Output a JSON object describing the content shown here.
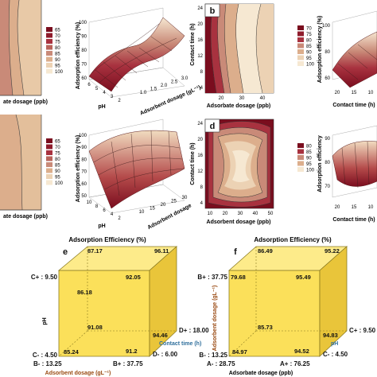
{
  "colors": {
    "dark_red": "#7a0d1e",
    "red": "#a8323f",
    "mid": "#c98a78",
    "tan": "#dcae8c",
    "light": "#ecd2b4",
    "pale": "#f6e8d2",
    "cube_front": "#fbe05a",
    "cube_top": "#fdeb8a",
    "cube_side": "#e9c53a",
    "blue_label": "#2f6f9c",
    "brown_label": "#9a4a12"
  },
  "panels": {
    "a_legend": [
      "65",
      "70",
      "75",
      "80",
      "85",
      "90",
      "95",
      "100"
    ],
    "a_surface": {
      "zlabel": "Adsorption efficiency (%)",
      "zticks": [
        "60",
        "70",
        "80",
        "90",
        "100"
      ],
      "xlabel": "Adsorbent dosage (gL⁻¹)",
      "xticks": [
        "1.0",
        "1.5",
        "2.0",
        "2.5",
        "3.0"
      ],
      "ylabel": "pH",
      "yticks": [
        "6",
        "5",
        "4",
        "3",
        "2"
      ]
    },
    "a_contour_xlabel": "ate dosage (ppb)",
    "b_badge": "b",
    "b_contour": {
      "ylabel": "Contact time (h)",
      "xlabel": "Adsorbate dosage (ppb)",
      "yticks": [
        "24",
        "20",
        "16",
        "12",
        "8",
        "4"
      ],
      "xticks": [
        "20",
        "30",
        "40"
      ]
    },
    "b_legend": [
      "70",
      "75",
      "80",
      "85",
      "90",
      "95",
      "100"
    ],
    "b_surface": {
      "zlabel": "Adsorption efficiency (%)",
      "zticks": [
        "60",
        "80",
        "100"
      ],
      "xlabel": "Contact time (h)",
      "xticks": [
        "20",
        "15",
        "10"
      ]
    },
    "c_legend": [
      "65",
      "70",
      "75",
      "80",
      "85",
      "90",
      "95",
      "100"
    ],
    "c_surface": {
      "zlabel": "Adsorption efficiency (%)",
      "zticks": [
        "50",
        "60",
        "70",
        "80",
        "90",
        "100"
      ],
      "ylabel": "pH",
      "yticks": [
        "10",
        "8",
        "6",
        "4",
        "2"
      ],
      "xlabel": "Adsorbent dosage",
      "xticks": [
        "10",
        "15",
        "20",
        "25",
        "30"
      ]
    },
    "c_contour_xlabel": "ate dosage (ppb)",
    "d_badge": "d",
    "d_contour": {
      "ylabel": "Contact time (h)",
      "xlabel": "Adsorbent dosage (ppb)",
      "yticks": [
        "24",
        "20",
        "16",
        "12",
        "8",
        "4"
      ],
      "xticks": [
        "10",
        "20",
        "30",
        "40",
        "50"
      ]
    },
    "d_legend": [
      "80",
      "85",
      "90",
      "95",
      "100"
    ],
    "d_surface": {
      "zlabel": "Adsorption efficiency",
      "zticks": [
        "70",
        "80",
        "90"
      ],
      "xlabel": "Contact time (h)",
      "xticks": [
        "20",
        "15",
        "10"
      ]
    }
  },
  "chart_data": [
    {
      "type": "cube",
      "badge": "e",
      "title": "Adsorption Efficiency (%)",
      "axes": {
        "vertical": "pH",
        "depth": "Contact time (h)",
        "horizontal": "Adsorbent dosage (gL⁻¹)"
      },
      "levels": {
        "vertical": {
          "minus": "C- : 4.50",
          "plus": "C+ : 9.50"
        },
        "horizontal": {
          "minus": "B- : 13.25",
          "plus": "B+ : 37.75"
        },
        "depth": {
          "minus": "D- : 6.00",
          "plus": "D+ : 18.00"
        }
      },
      "corners": {
        "front_bottom_left": 85.24,
        "front_bottom_right": 91.2,
        "front_top_left": 86.18,
        "front_top_right": 92.05,
        "back_bottom_left": 91.08,
        "back_bottom_right": 94.46,
        "back_top_left": 87.17,
        "back_top_right": 96.11
      }
    },
    {
      "type": "cube",
      "badge": "f",
      "title": "Adsorption Efficiency (%)",
      "axes": {
        "vertical": "Adsorbent dosage (gL⁻¹)",
        "depth": "pH",
        "horizontal": "Adsorbate dosage (ppb)"
      },
      "levels": {
        "vertical": {
          "minus": "B- : 13.25",
          "plus": "B+ : 37.75"
        },
        "horizontal": {
          "minus": "A- : 28.75",
          "plus": "A+ : 76.25"
        },
        "depth": {
          "minus": "C- : 4.50",
          "plus": "C+ : 9.50"
        }
      },
      "corners": {
        "front_bottom_left": 84.97,
        "front_bottom_right": 94.52,
        "front_top_left": 79.68,
        "front_top_right": 95.49,
        "back_bottom_left": 85.73,
        "back_bottom_right": 94.83,
        "back_top_left": 86.49,
        "back_top_right": 95.22
      }
    }
  ]
}
